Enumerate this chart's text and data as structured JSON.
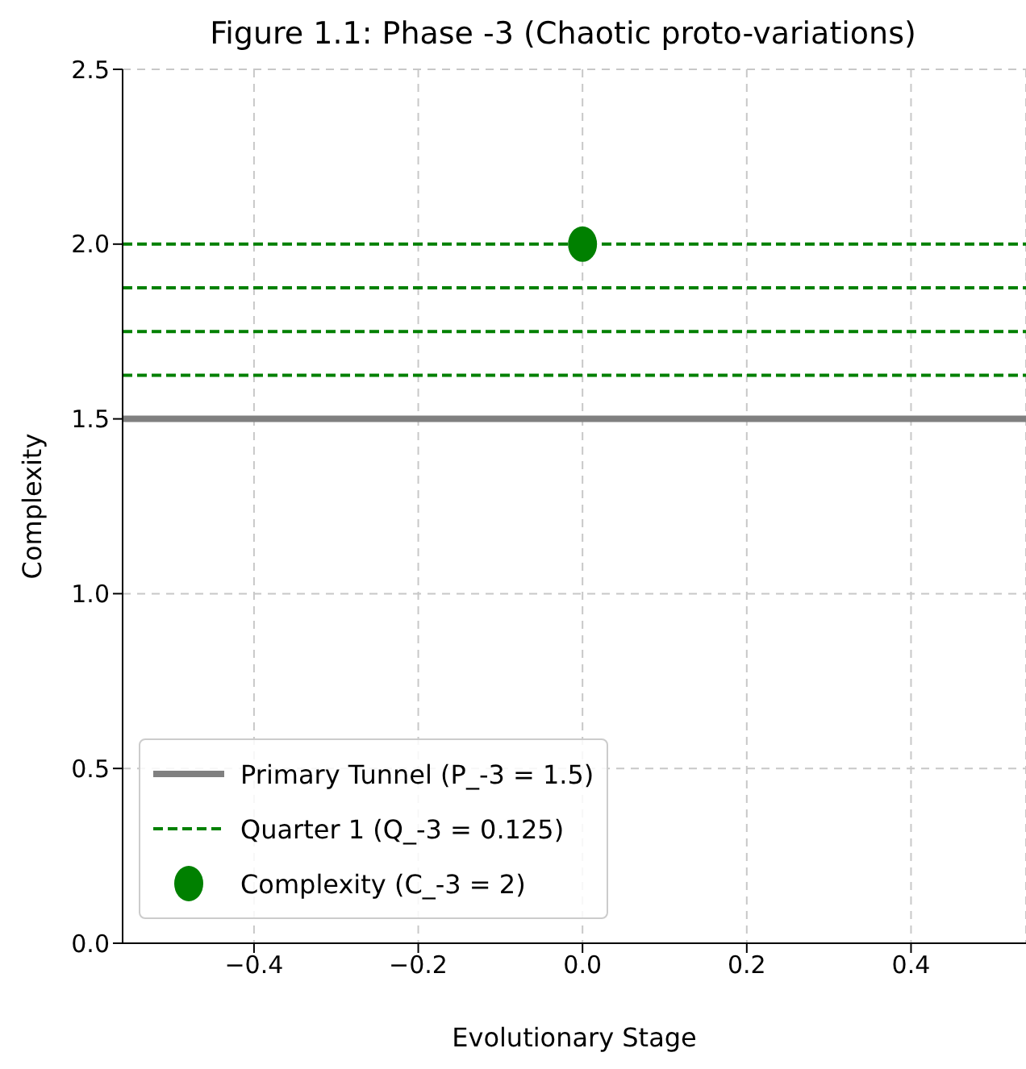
{
  "chart_data": {
    "type": "line",
    "title": "Figure 1.1: Phase -3 (Chaotic proto-variations)",
    "xlabel": "Evolutionary Stage",
    "ylabel": "Complexity",
    "xlim": [
      -0.56,
      0.54
    ],
    "ylim": [
      0,
      2.5
    ],
    "xticks": [
      {
        "value": -0.4,
        "label": "−0.4"
      },
      {
        "value": -0.2,
        "label": "−0.2"
      },
      {
        "value": 0,
        "label": "0.0"
      },
      {
        "value": 0.2,
        "label": "0.2"
      },
      {
        "value": 0.4,
        "label": "0.4"
      }
    ],
    "yticks": [
      {
        "value": 0,
        "label": "0.0"
      },
      0.5,
      {
        "value": 1,
        "label": "1.0"
      },
      1.5,
      {
        "value": 2,
        "label": "2.0"
      },
      2.5
    ],
    "grid": true,
    "legend": "bottom left",
    "series": [
      {
        "name": "Primary Tunnel (P_-3 = 1.5)",
        "color": "#808080",
        "line_style": "solid",
        "x": [
          -0.56,
          0.54
        ],
        "values": [
          1.5,
          1.5
        ]
      },
      {
        "name": "Quarter 1 (Q_-3 = 0.125)",
        "color": "#008000",
        "line_style": "dashed",
        "x": [
          -0.56,
          0.54
        ],
        "values": [
          1.625,
          1.625
        ]
      },
      {
        "type": "line",
        "color": "#008000",
        "line_style": "dashed",
        "x": [
          -0.56,
          0.54
        ],
        "values": [
          1.75,
          1.75
        ]
      },
      {
        "type": "line",
        "color": "#008000",
        "line_style": "dashed",
        "x": [
          -0.56,
          0.54
        ],
        "values": [
          1.875,
          1.875
        ]
      },
      {
        "type": "line",
        "color": "#008000",
        "line_style": "dashed",
        "x": [
          -0.56,
          0.54
        ],
        "values": [
          2,
          2
        ]
      },
      {
        "name": "Complexity (C_-3 = 2)",
        "type": "scatter",
        "color": "#008000",
        "marker": "circle",
        "x": [
          0
        ],
        "values": [
          2
        ]
      }
    ]
  }
}
